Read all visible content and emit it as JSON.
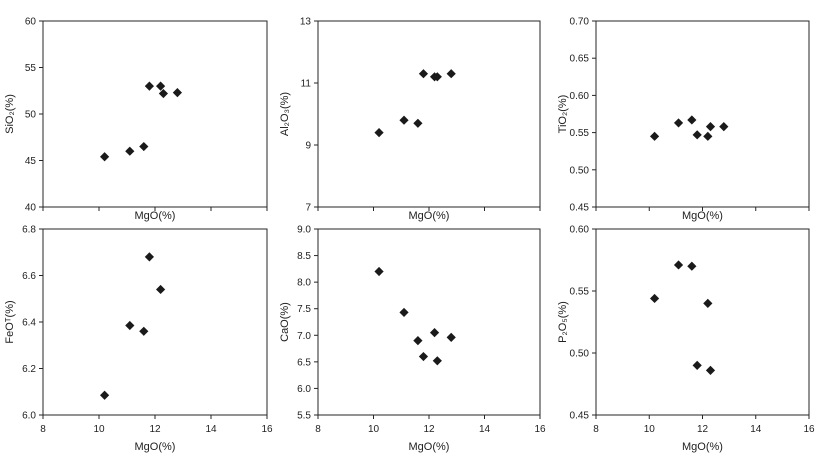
{
  "chart_data": [
    {
      "type": "scatter",
      "xlabel": "MgO(%)",
      "ylabel": "SiO₂(%)",
      "xlim": [
        8,
        16
      ],
      "ylim": [
        40,
        60
      ],
      "xticks": [],
      "xtick_labels": [],
      "yticks": [
        40,
        45,
        50,
        55,
        60
      ],
      "ytick_labels": [
        "40",
        "45",
        "50",
        "55",
        "60"
      ],
      "marker": "diamond",
      "color": "#1a1a1a",
      "points": [
        {
          "x": 10.2,
          "y": 45.4
        },
        {
          "x": 11.1,
          "y": 46.0
        },
        {
          "x": 11.6,
          "y": 46.5
        },
        {
          "x": 11.8,
          "y": 53.0
        },
        {
          "x": 12.2,
          "y": 53.0
        },
        {
          "x": 12.3,
          "y": 52.2
        },
        {
          "x": 12.8,
          "y": 52.3
        }
      ]
    },
    {
      "type": "scatter",
      "xlabel": "MgO(%)",
      "ylabel": "Al₂O₃(%)",
      "xlim": [
        8,
        16
      ],
      "ylim": [
        7,
        13
      ],
      "xticks": [],
      "xtick_labels": [],
      "yticks": [
        7,
        9,
        11,
        13
      ],
      "ytick_labels": [
        "7",
        "9",
        "11",
        "13"
      ],
      "marker": "diamond",
      "color": "#1a1a1a",
      "points": [
        {
          "x": 10.2,
          "y": 9.4
        },
        {
          "x": 11.1,
          "y": 9.8
        },
        {
          "x": 11.6,
          "y": 9.7
        },
        {
          "x": 11.8,
          "y": 11.3
        },
        {
          "x": 12.2,
          "y": 11.2
        },
        {
          "x": 12.3,
          "y": 11.2
        },
        {
          "x": 12.8,
          "y": 11.3
        }
      ]
    },
    {
      "type": "scatter",
      "xlabel": "MgO(%)",
      "ylabel": "TiO₂(%)",
      "xlim": [
        8,
        16
      ],
      "ylim": [
        0.45,
        0.7
      ],
      "xticks": [],
      "xtick_labels": [],
      "yticks": [
        0.45,
        0.5,
        0.55,
        0.6,
        0.65,
        0.7
      ],
      "ytick_labels": [
        "0.45",
        "0.50",
        "0.55",
        "0.60",
        "0.65",
        "0.70"
      ],
      "marker": "diamond",
      "color": "#1a1a1a",
      "points": [
        {
          "x": 10.2,
          "y": 0.545
        },
        {
          "x": 11.1,
          "y": 0.563
        },
        {
          "x": 11.6,
          "y": 0.567
        },
        {
          "x": 11.8,
          "y": 0.547
        },
        {
          "x": 12.2,
          "y": 0.545
        },
        {
          "x": 12.3,
          "y": 0.558
        },
        {
          "x": 12.8,
          "y": 0.558
        }
      ]
    },
    {
      "type": "scatter",
      "xlabel": "MgO(%)",
      "ylabel": "FeOᵀ(%)",
      "xlim": [
        8,
        16
      ],
      "ylim": [
        6.0,
        6.8
      ],
      "xticks": [
        8,
        10,
        12,
        14,
        16
      ],
      "xtick_labels": [
        "8",
        "10",
        "12",
        "14",
        "16"
      ],
      "yticks": [
        6.0,
        6.2,
        6.4,
        6.6,
        6.8
      ],
      "ytick_labels": [
        "6.0",
        "6.2",
        "6.4",
        "6.6",
        "6.8"
      ],
      "marker": "diamond",
      "color": "#1a1a1a",
      "points": [
        {
          "x": 10.2,
          "y": 6.085
        },
        {
          "x": 11.1,
          "y": 6.385
        },
        {
          "x": 11.6,
          "y": 6.36
        },
        {
          "x": 11.8,
          "y": 6.68
        },
        {
          "x": 12.2,
          "y": 6.54
        }
      ]
    },
    {
      "type": "scatter",
      "xlabel": "MgO(%)",
      "ylabel": "CaO(%)",
      "xlim": [
        8,
        16
      ],
      "ylim": [
        5.5,
        9.0
      ],
      "xticks": [
        8,
        10,
        12,
        14,
        16
      ],
      "xtick_labels": [
        "8",
        "10",
        "12",
        "14",
        "16"
      ],
      "yticks": [
        5.5,
        6.0,
        6.5,
        7.0,
        7.5,
        8.0,
        8.5,
        9.0
      ],
      "ytick_labels": [
        "5.5",
        "6.0",
        "6.5",
        "7.0",
        "7.5",
        "8.0",
        "8.5",
        "9.0"
      ],
      "marker": "diamond",
      "color": "#1a1a1a",
      "points": [
        {
          "x": 10.2,
          "y": 8.2
        },
        {
          "x": 11.1,
          "y": 7.43
        },
        {
          "x": 11.6,
          "y": 6.9
        },
        {
          "x": 11.8,
          "y": 6.6
        },
        {
          "x": 12.2,
          "y": 7.05
        },
        {
          "x": 12.3,
          "y": 6.52
        },
        {
          "x": 12.8,
          "y": 6.96
        }
      ]
    },
    {
      "type": "scatter",
      "xlabel": "MgO(%)",
      "ylabel": "P₂O₅(%)",
      "xlim": [
        8,
        16
      ],
      "ylim": [
        0.45,
        0.6
      ],
      "xticks": [
        8,
        10,
        12,
        14,
        16
      ],
      "xtick_labels": [
        "8",
        "10",
        "12",
        "14",
        "16"
      ],
      "yticks": [
        0.45,
        0.5,
        0.55,
        0.6
      ],
      "ytick_labels": [
        "0.45",
        "0.50",
        "0.55",
        "0.60"
      ],
      "marker": "diamond",
      "color": "#1a1a1a",
      "points": [
        {
          "x": 10.2,
          "y": 0.544
        },
        {
          "x": 11.1,
          "y": 0.571
        },
        {
          "x": 11.6,
          "y": 0.57
        },
        {
          "x": 11.8,
          "y": 0.49
        },
        {
          "x": 12.2,
          "y": 0.54
        },
        {
          "x": 12.3,
          "y": 0.486
        }
      ]
    }
  ]
}
